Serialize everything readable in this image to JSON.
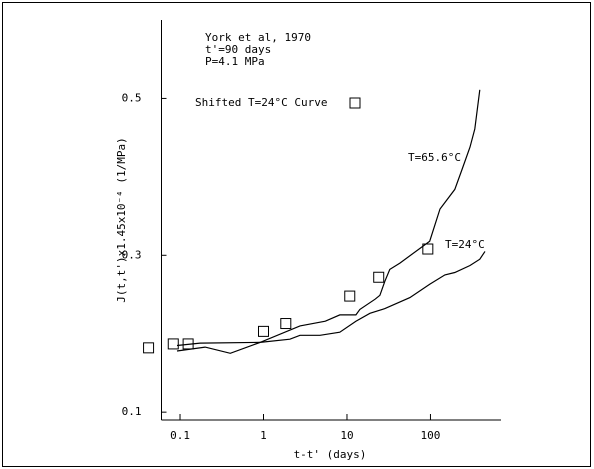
{
  "chart_data": {
    "type": "line",
    "annotations": [
      "York et al, 1970",
      "t'=90 days",
      "P=4.1 MPa"
    ],
    "xlabel": "t-t' (days)",
    "ylabel": "J(t,t')x1.45x10⁻⁴ (1/MPa)",
    "xscale": "log",
    "xlim": [
      0.06,
      700
    ],
    "xticks": [
      0.1,
      1,
      10,
      100
    ],
    "ylim": [
      0.09,
      0.6
    ],
    "yticks": [
      0.1,
      0.3,
      0.5
    ],
    "series": [
      {
        "name": "Shifted T=24°C Curve",
        "mode": "markers",
        "color": "#000000",
        "x": [
          0.042,
          0.083,
          0.125,
          1.0,
          1.85,
          10.8,
          24,
          93
        ],
        "values": [
          0.182,
          0.187,
          0.187,
          0.203,
          0.213,
          0.248,
          0.272,
          0.308
        ]
      },
      {
        "name": "T=65.6°C",
        "mode": "line",
        "color": "#000000",
        "x": [
          0.092,
          0.174,
          0.91,
          2.74,
          5.5,
          8.2,
          12.8,
          14.3,
          21.7,
          24.8,
          28.5,
          32.6,
          43,
          98,
          130,
          196,
          240,
          298,
          340,
          390
        ],
        "values": [
          0.185,
          0.188,
          0.189,
          0.21,
          0.216,
          0.224,
          0.224,
          0.231,
          0.244,
          0.249,
          0.267,
          0.282,
          0.29,
          0.318,
          0.359,
          0.384,
          0.41,
          0.438,
          0.461,
          0.511
        ]
      },
      {
        "name": "T=24°C",
        "mode": "line",
        "color": "#000000",
        "x": [
          0.092,
          0.2,
          0.4,
          0.91,
          2.07,
          2.74,
          4.75,
          8.2,
          12.8,
          18.8,
          28.5,
          56.7,
          98,
          149,
          196,
          298,
          390,
          450
        ],
        "values": [
          0.178,
          0.183,
          0.175,
          0.189,
          0.193,
          0.198,
          0.198,
          0.202,
          0.216,
          0.226,
          0.232,
          0.246,
          0.263,
          0.275,
          0.278,
          0.287,
          0.295,
          0.305
        ]
      }
    ]
  }
}
